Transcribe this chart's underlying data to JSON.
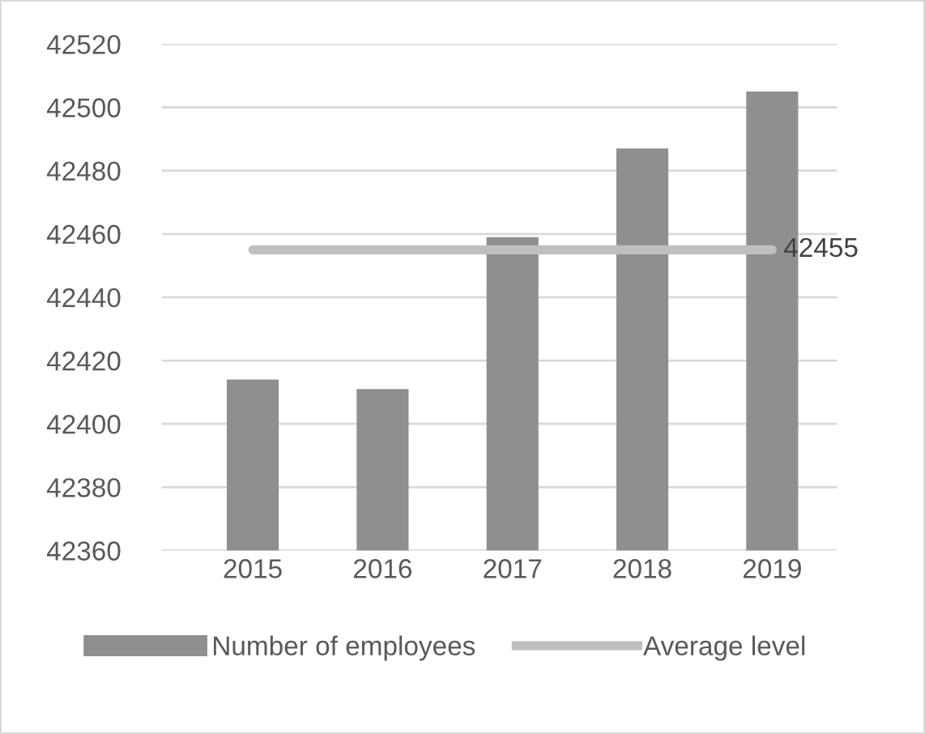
{
  "chart_data": {
    "type": "bar",
    "categories": [
      "2015",
      "2016",
      "2017",
      "2018",
      "2019"
    ],
    "series": [
      {
        "name": "Number of employees",
        "color": "#8f8f8f",
        "values": [
          42414,
          42411,
          42459,
          42487,
          42505
        ]
      },
      {
        "name": "Average level",
        "type": "line",
        "color": "#bfbfbf",
        "values": [
          42455,
          42455,
          42455,
          42455,
          42455
        ],
        "value_labels": [
          null,
          null,
          null,
          null,
          "42455"
        ]
      }
    ],
    "ylim": [
      42360,
      42520
    ],
    "yticks": [
      42360,
      42380,
      42400,
      42420,
      42440,
      42460,
      42480,
      42500,
      42520
    ],
    "grid": "y",
    "legend": "bottom",
    "marker": "none",
    "line_style": "solid"
  }
}
